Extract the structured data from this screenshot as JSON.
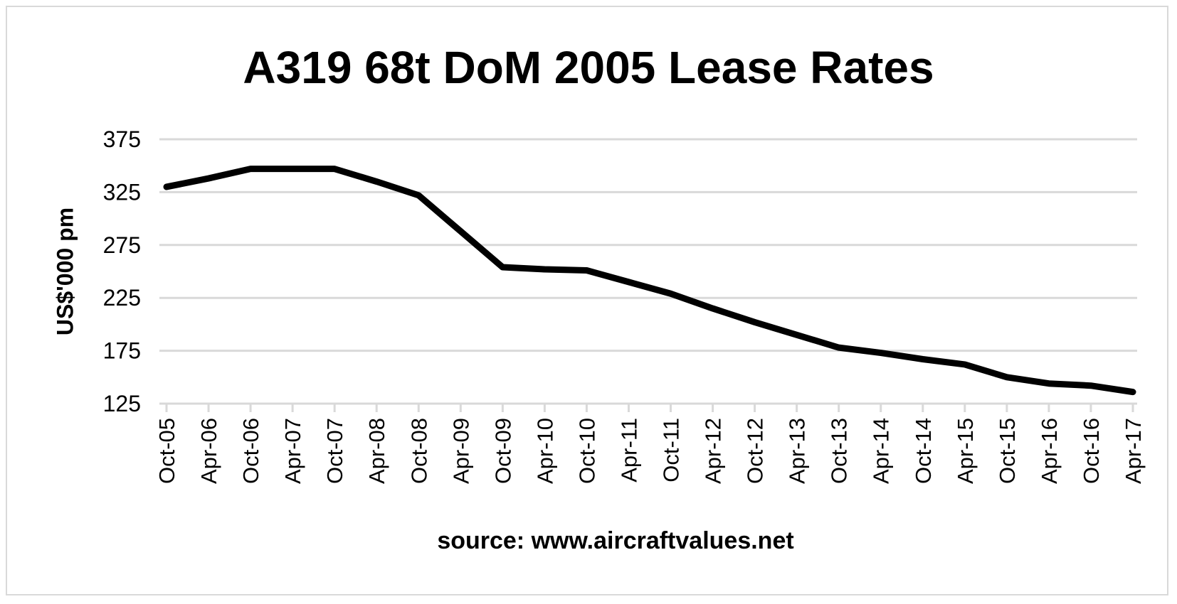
{
  "chart_data": {
    "type": "line",
    "title": "A319 68t DoM 2005 Lease Rates",
    "xlabel": "source: www.aircraftvalues.net",
    "ylabel": "US$'000 pm",
    "ylim": [
      125,
      375
    ],
    "yticks": [
      125,
      175,
      225,
      275,
      325,
      375
    ],
    "grid": true,
    "categories": [
      "Oct-05",
      "Apr-06",
      "Oct-06",
      "Apr-07",
      "Oct-07",
      "Apr-08",
      "Oct-08",
      "Apr-09",
      "Oct-09",
      "Apr-10",
      "Oct-10",
      "Apr-11",
      "Oct-11",
      "Apr-12",
      "Oct-12",
      "Apr-13",
      "Oct-13",
      "Apr-14",
      "Oct-14",
      "Apr-15",
      "Oct-15",
      "Apr-16",
      "Oct-16",
      "Apr-17"
    ],
    "series": [
      {
        "values": [
          330,
          338,
          347,
          347,
          347,
          335,
          322,
          288,
          254,
          252,
          251,
          240,
          229,
          215,
          202,
          190,
          178,
          173,
          167,
          162,
          150,
          144,
          142,
          136
        ],
        "color": "#000000"
      }
    ],
    "gridline_color": "#d9d9d9"
  }
}
